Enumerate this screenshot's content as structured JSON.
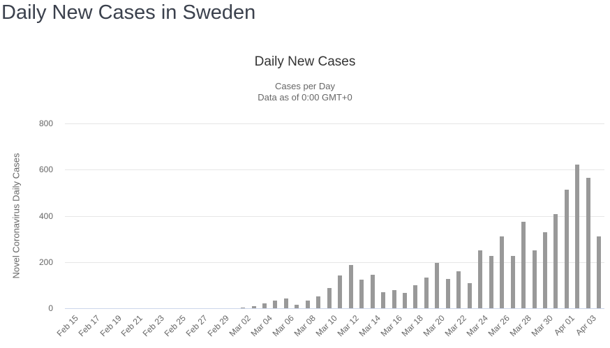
{
  "page": {
    "title": "Daily New Cases in Sweden"
  },
  "chart": {
    "title": "Daily New Cases",
    "subtitle_line1": "Cases per Day",
    "subtitle_line2": "Data as of 0:00 GMT+0",
    "y_axis_title": "Novel Coronavirus Daily Cases"
  },
  "colors": {
    "bar": "#999999",
    "gridline": "#e6e6e6",
    "axis_line": "#ccd6eb",
    "page_title": "#3b414d",
    "chart_title": "#333333",
    "muted_text": "#666666"
  },
  "chart_data": {
    "type": "bar",
    "title": "Daily New Cases",
    "subtitle": [
      "Cases per Day",
      "Data as of 0:00 GMT+0"
    ],
    "xlabel": "",
    "ylabel": "Novel Coronavirus Daily Cases",
    "ylim": [
      0,
      800
    ],
    "yticks": [
      0,
      200,
      400,
      600,
      800
    ],
    "grid": true,
    "legend": false,
    "label_every": 2,
    "categories": [
      "Feb 15",
      "Feb 16",
      "Feb 17",
      "Feb 18",
      "Feb 19",
      "Feb 20",
      "Feb 21",
      "Feb 22",
      "Feb 23",
      "Feb 24",
      "Feb 25",
      "Feb 26",
      "Feb 27",
      "Feb 28",
      "Feb 29",
      "Mar 01",
      "Mar 02",
      "Mar 03",
      "Mar 04",
      "Mar 05",
      "Mar 06",
      "Mar 07",
      "Mar 08",
      "Mar 09",
      "Mar 10",
      "Mar 11",
      "Mar 12",
      "Mar 13",
      "Mar 14",
      "Mar 15",
      "Mar 16",
      "Mar 17",
      "Mar 18",
      "Mar 19",
      "Mar 20",
      "Mar 21",
      "Mar 22",
      "Mar 23",
      "Mar 24",
      "Mar 25",
      "Mar 26",
      "Mar 27",
      "Mar 28",
      "Mar 29",
      "Mar 30",
      "Mar 31",
      "Apr 01",
      "Apr 02",
      "Apr 03",
      "Apr 04"
    ],
    "values": [
      0,
      0,
      0,
      0,
      0,
      0,
      0,
      0,
      0,
      0,
      0,
      0,
      0,
      0,
      0,
      0,
      2,
      10,
      20,
      34,
      41,
      16,
      32,
      50,
      88,
      142,
      187,
      125,
      146,
      69,
      77,
      67,
      100,
      134,
      196,
      126,
      160,
      108,
      250,
      225,
      312,
      225,
      374,
      250,
      328,
      407,
      512,
      622,
      565,
      310
    ]
  }
}
